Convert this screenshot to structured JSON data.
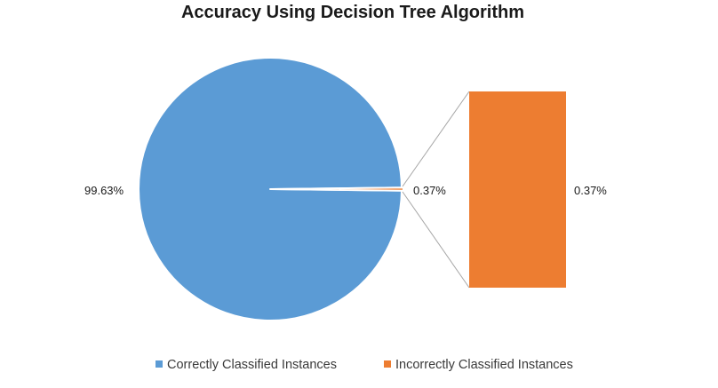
{
  "chart_data": {
    "type": "pie",
    "subtype": "pie-of-bar",
    "title": "Accuracy Using Decision Tree Algorithm",
    "slices": [
      {
        "label": "Correctly Classified Instances",
        "value": 99.63,
        "display": "99.63%",
        "color": "#5B9BD5"
      },
      {
        "label": "Incorrectly Classified Instances",
        "value": 0.37,
        "display": "0.37%",
        "color": "#ED7D31"
      }
    ],
    "secondary_bar": {
      "label": "0.37%",
      "value": 0.37,
      "color": "#ED7D31"
    },
    "legend_position": "bottom"
  }
}
